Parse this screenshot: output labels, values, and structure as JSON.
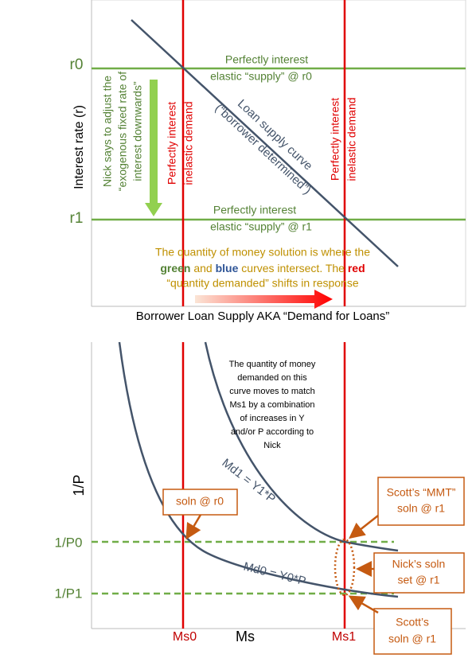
{
  "top_panel": {
    "rate_labels": [
      "r0",
      "r1"
    ],
    "y_axis_title": "Interest rate (r)",
    "x_axis_title": "Borrower Loan Supply AKA “Demand for Loans”",
    "supply_labels": [
      [
        "Perfectly interest",
        "elastic “supply” @ r0"
      ],
      [
        "Perfectly interest",
        "elastic “supply” @ r1"
      ]
    ],
    "demand_labels": [
      [
        "Perfectly interest",
        "inelastic demand"
      ],
      [
        "Perfectly interest",
        "inelastic demand"
      ]
    ],
    "loan_curve_label": [
      "Loan supply curve",
      "(“borrower determined”)"
    ],
    "nick_note": [
      "Nick says to adjust the",
      "“exogenous fixed rate of",
      "interest downwards”"
    ],
    "solution_note": {
      "line1": "The quantity of money solution is where the",
      "line2": [
        "green",
        " and ",
        "blue",
        " curves intersect. The ",
        "red"
      ],
      "line3": "“quantity demanded” shifts in response"
    }
  },
  "bottom_panel": {
    "y_axis_title": "1/P",
    "price_labels": [
      "1/P0",
      "1/P1"
    ],
    "x_axis_title": "Ms",
    "supply_labels": [
      "Ms0",
      "Ms1"
    ],
    "curve_labels": [
      "Md1 = Y1*P",
      "Md0 = Y0*P"
    ],
    "note": [
      "The quantity of money",
      "demanded on this",
      "curve moves to match",
      "Ms1 by a combination",
      "of increases in Y",
      "and/or P according to",
      "Nick"
    ],
    "callouts": [
      [
        "soln @ r0"
      ],
      [
        "Scott’s “MMT”",
        "soln @ r1"
      ],
      [
        "Nick’s soln",
        "set @ r1"
      ],
      [
        "Scott’s",
        "soln @ r1"
      ]
    ]
  }
}
